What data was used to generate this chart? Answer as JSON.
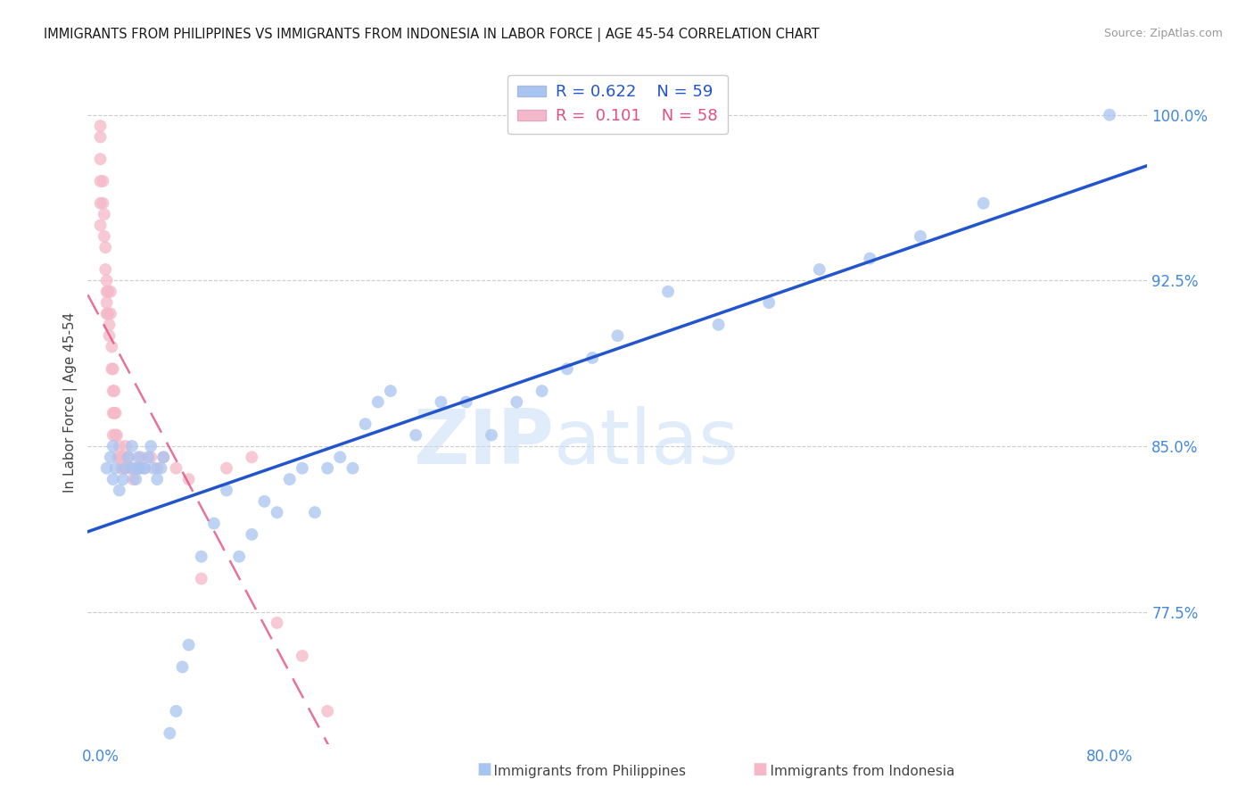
{
  "title": "IMMIGRANTS FROM PHILIPPINES VS IMMIGRANTS FROM INDONESIA IN LABOR FORCE | AGE 45-54 CORRELATION CHART",
  "source": "Source: ZipAtlas.com",
  "ylabel": "In Labor Force | Age 45-54",
  "watermark_zip": "ZIP",
  "watermark_atlas": "atlas",
  "phil_R": 0.622,
  "phil_N": 59,
  "indo_R": 0.101,
  "indo_N": 58,
  "phil_color": "#a8c4f0",
  "indo_color": "#f5b8c8",
  "phil_line_color": "#2255cc",
  "indo_line_color": "#e05080",
  "axis_label_color": "#4488dd",
  "ytick_vals": [
    0.775,
    0.85,
    0.925,
    1.0
  ],
  "ytick_labels": [
    "77.5%",
    "85.0%",
    "92.5%",
    "100.0%"
  ],
  "xtick_vals": [
    0.0,
    0.16,
    0.32,
    0.48,
    0.64,
    0.8
  ],
  "xtick_labels": [
    "0.0%",
    "",
    "",
    "",
    "",
    "80.0%"
  ],
  "ylim": [
    0.715,
    1.025
  ],
  "xlim": [
    -0.01,
    0.83
  ],
  "phil_x": [
    0.005,
    0.008,
    0.01,
    0.01,
    0.012,
    0.015,
    0.018,
    0.02,
    0.022,
    0.025,
    0.025,
    0.028,
    0.03,
    0.03,
    0.032,
    0.035,
    0.038,
    0.04,
    0.042,
    0.045,
    0.048,
    0.05,
    0.055,
    0.06,
    0.065,
    0.07,
    0.08,
    0.09,
    0.1,
    0.11,
    0.12,
    0.13,
    0.14,
    0.15,
    0.16,
    0.17,
    0.18,
    0.19,
    0.2,
    0.21,
    0.22,
    0.23,
    0.25,
    0.27,
    0.29,
    0.31,
    0.33,
    0.35,
    0.37,
    0.39,
    0.41,
    0.45,
    0.49,
    0.53,
    0.57,
    0.61,
    0.65,
    0.7,
    0.8
  ],
  "phil_y": [
    0.84,
    0.845,
    0.835,
    0.85,
    0.84,
    0.83,
    0.835,
    0.84,
    0.845,
    0.84,
    0.85,
    0.835,
    0.84,
    0.845,
    0.84,
    0.84,
    0.845,
    0.85,
    0.84,
    0.835,
    0.84,
    0.845,
    0.72,
    0.73,
    0.75,
    0.76,
    0.8,
    0.815,
    0.83,
    0.8,
    0.81,
    0.825,
    0.82,
    0.835,
    0.84,
    0.82,
    0.84,
    0.845,
    0.84,
    0.86,
    0.87,
    0.875,
    0.855,
    0.87,
    0.87,
    0.855,
    0.87,
    0.875,
    0.885,
    0.89,
    0.9,
    0.92,
    0.905,
    0.915,
    0.93,
    0.935,
    0.945,
    0.96,
    1.0
  ],
  "indo_x": [
    0.0,
    0.0,
    0.0,
    0.0,
    0.0,
    0.0,
    0.002,
    0.002,
    0.003,
    0.003,
    0.004,
    0.004,
    0.005,
    0.005,
    0.005,
    0.005,
    0.006,
    0.006,
    0.007,
    0.007,
    0.008,
    0.008,
    0.009,
    0.009,
    0.01,
    0.01,
    0.01,
    0.01,
    0.011,
    0.011,
    0.012,
    0.012,
    0.013,
    0.014,
    0.015,
    0.016,
    0.017,
    0.018,
    0.019,
    0.02,
    0.022,
    0.024,
    0.026,
    0.028,
    0.03,
    0.032,
    0.035,
    0.04,
    0.045,
    0.05,
    0.06,
    0.07,
    0.08,
    0.1,
    0.12,
    0.14,
    0.16,
    0.18
  ],
  "indo_y": [
    0.995,
    0.99,
    0.98,
    0.97,
    0.96,
    0.95,
    0.97,
    0.96,
    0.955,
    0.945,
    0.94,
    0.93,
    0.925,
    0.92,
    0.915,
    0.91,
    0.92,
    0.91,
    0.905,
    0.9,
    0.92,
    0.91,
    0.895,
    0.885,
    0.885,
    0.875,
    0.865,
    0.855,
    0.875,
    0.865,
    0.855,
    0.865,
    0.855,
    0.845,
    0.85,
    0.845,
    0.84,
    0.845,
    0.84,
    0.85,
    0.845,
    0.84,
    0.835,
    0.84,
    0.84,
    0.845,
    0.84,
    0.845,
    0.84,
    0.845,
    0.84,
    0.835,
    0.79,
    0.84,
    0.845,
    0.77,
    0.755,
    0.73
  ]
}
